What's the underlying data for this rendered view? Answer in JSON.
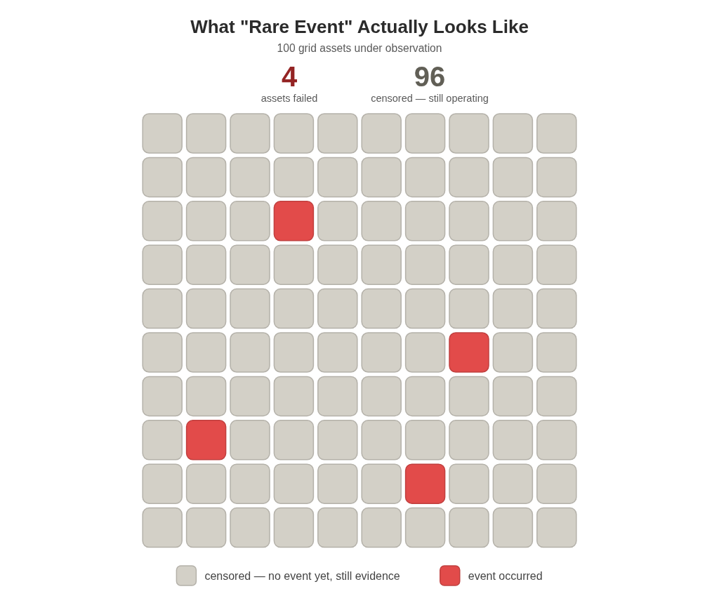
{
  "chart_data": {
    "type": "other",
    "title": "What \"Rare Event\" Actually Looks Like",
    "subtitle": "100 grid assets under observation",
    "categories": [
      "assets failed",
      "censored — still operating"
    ],
    "data_labels": true,
    "series": [
      {
        "name": "censored — no event yet, still evidence",
        "color": "#d3d0c7",
        "values": [
          null,
          96
        ]
      },
      {
        "name": "event occurred",
        "color": "#e24b4a",
        "values": [
          4,
          null
        ]
      }
    ],
    "y_categories": [
      null,
      null,
      null,
      null,
      null,
      null,
      null,
      null,
      null,
      null
    ],
    "colors": [
      "#d3d0c7",
      "#d3d0c7",
      "#d3d0c7",
      "#d3d0c7",
      "#d3d0c7",
      "#d3d0c7",
      "#d3d0c7",
      "#d3d0c7",
      "#d3d0c7",
      "#d3d0c7",
      "#d3d0c7",
      "#d3d0c7",
      "#d3d0c7",
      "#d3d0c7",
      "#d3d0c7",
      "#d3d0c7",
      "#d3d0c7",
      "#d3d0c7",
      "#d3d0c7",
      "#d3d0c7",
      "#d3d0c7",
      "#d3d0c7",
      "#d3d0c7",
      "#e24b4a",
      "#d3d0c7",
      "#d3d0c7",
      "#d3d0c7",
      "#d3d0c7",
      "#d3d0c7",
      "#d3d0c7",
      "#d3d0c7",
      "#d3d0c7",
      "#d3d0c7",
      "#d3d0c7",
      "#d3d0c7",
      "#d3d0c7",
      "#d3d0c7",
      "#d3d0c7",
      "#d3d0c7",
      "#d3d0c7",
      "#d3d0c7",
      "#d3d0c7",
      "#d3d0c7",
      "#d3d0c7",
      "#d3d0c7",
      "#d3d0c7",
      "#d3d0c7",
      "#d3d0c7",
      "#d3d0c7",
      "#d3d0c7",
      "#d3d0c7",
      "#d3d0c7",
      "#d3d0c7",
      "#d3d0c7",
      "#d3d0c7",
      "#d3d0c7",
      "#d3d0c7",
      "#e24b4a",
      "#d3d0c7",
      "#d3d0c7",
      "#d3d0c7",
      "#d3d0c7",
      "#d3d0c7",
      "#d3d0c7",
      "#d3d0c7",
      "#d3d0c7",
      "#d3d0c7",
      "#d3d0c7",
      "#d3d0c7",
      "#d3d0c7",
      "#d3d0c7",
      "#e24b4a",
      "#d3d0c7",
      "#d3d0c7",
      "#d3d0c7",
      "#d3d0c7",
      "#d3d0c7",
      "#d3d0c7",
      "#d3d0c7",
      "#d3d0c7",
      "#d3d0c7",
      "#d3d0c7",
      "#d3d0c7",
      "#d3d0c7",
      "#d3d0c7",
      "#d3d0c7",
      "#e24b4a",
      "#d3d0c7",
      "#d3d0c7",
      "#d3d0c7",
      "#d3d0c7",
      "#d3d0c7",
      "#d3d0c7",
      "#d3d0c7",
      "#d3d0c7",
      "#d3d0c7",
      "#d3d0c7",
      "#d3d0c7",
      "#d3d0c7",
      "#d3d0c7"
    ],
    "legend": "bottom"
  }
}
